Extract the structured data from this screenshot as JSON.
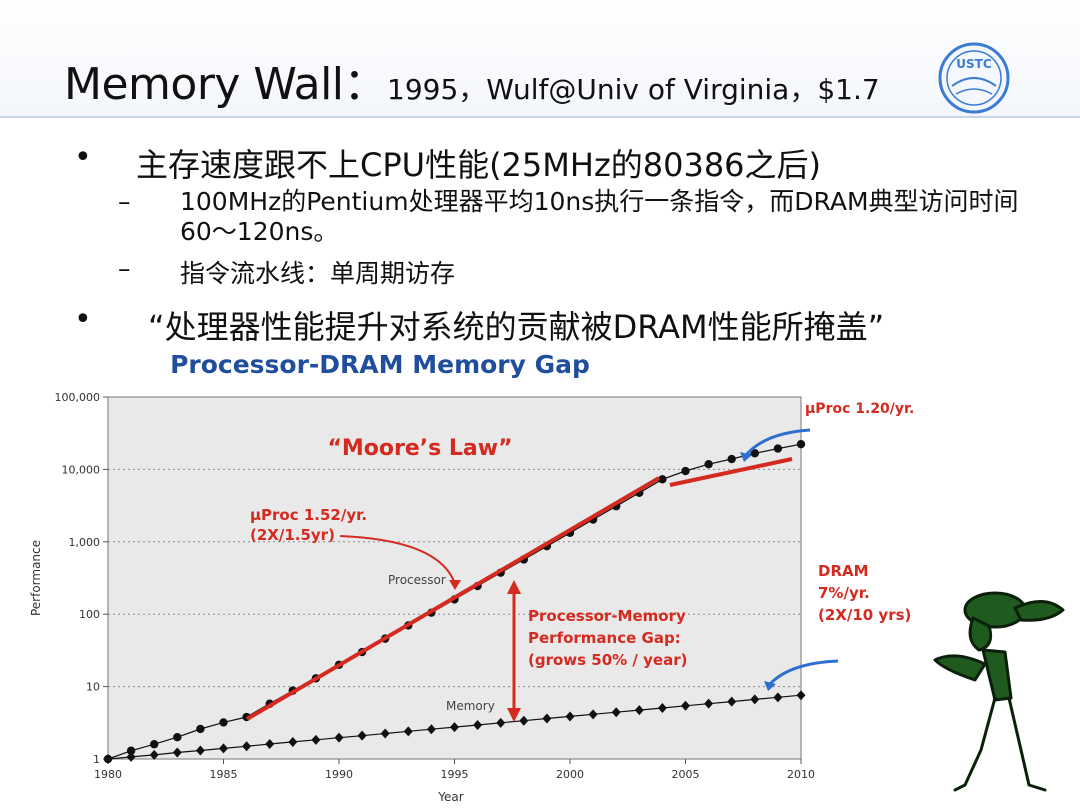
{
  "slide": {
    "title_main": "Memory Wall：",
    "title_sub": "1995，Wulf@Univ of Virginia，$1.7",
    "logo_text": "USTC",
    "bullets": [
      {
        "marker": "•",
        "text": "主存速度跟不上CPU性能(25MHz的80386之后)"
      },
      {
        "marker": "–",
        "text": "100MHz的Pentium处理器平均10ns执行一条指令，而DRAM典型访问时间60～120ns。"
      },
      {
        "marker": "–",
        "text": "指令流水线：单周期访存"
      },
      {
        "marker": "•",
        "text": "“处理器性能提升对系统的贡献被DRAM性能所掩盖”"
      }
    ]
  },
  "chart_data": {
    "type": "scatter",
    "title": "Processor-DRAM Memory Gap",
    "xlabel": "Year",
    "ylabel": "Performance",
    "yscale": "log",
    "xlim": [
      1980,
      2010
    ],
    "ylim": [
      1,
      100000
    ],
    "x_ticks": [
      "1980",
      "1985",
      "1990",
      "1995",
      "2000",
      "2005",
      "2010"
    ],
    "y_ticks": [
      "1",
      "10",
      "100",
      "1,000",
      "10,000",
      "100,000"
    ],
    "grid": true,
    "series": [
      {
        "name": "Processor",
        "color": "#111111",
        "x": [
          1980,
          1981,
          1982,
          1983,
          1984,
          1985,
          1986,
          1987,
          1988,
          1989,
          1990,
          1991,
          1992,
          1993,
          1994,
          1995,
          1996,
          1997,
          1998,
          1999,
          2000,
          2001,
          2002,
          2003,
          2004,
          2005,
          2006,
          2007,
          2008,
          2009,
          2010
        ],
        "y": [
          1,
          1.3,
          1.6,
          2,
          2.6,
          3.2,
          3.8,
          5.8,
          8.8,
          13,
          20,
          30,
          46,
          70,
          105,
          160,
          245,
          375,
          570,
          870,
          1330,
          2030,
          3100,
          4750,
          7300,
          9500,
          11800,
          13900,
          16700,
          19400,
          22300
        ]
      },
      {
        "name": "Memory",
        "color": "#111111",
        "x": [
          1980,
          1981,
          1982,
          1983,
          1984,
          1985,
          1986,
          1987,
          1988,
          1989,
          1990,
          1991,
          1992,
          1993,
          1994,
          1995,
          1996,
          1997,
          1998,
          1999,
          2000,
          2001,
          2002,
          2003,
          2004,
          2005,
          2006,
          2007,
          2008,
          2009,
          2010
        ],
        "y": [
          1,
          1.07,
          1.14,
          1.23,
          1.31,
          1.4,
          1.5,
          1.61,
          1.72,
          1.84,
          1.97,
          2.1,
          2.25,
          2.41,
          2.58,
          2.76,
          2.95,
          3.16,
          3.38,
          3.62,
          3.87,
          4.14,
          4.43,
          4.74,
          5.07,
          5.43,
          5.81,
          6.21,
          6.65,
          7.11,
          7.61
        ]
      }
    ],
    "annotations": {
      "moores_law": "“Moore’s Law”",
      "uproc_152_line1": "µProc 1.52/yr.",
      "uproc_152_line2": "(2X/1.5yr)",
      "uproc_120": "µProc 1.20/yr.",
      "dram_line1": "DRAM",
      "dram_line2": "7%/yr.",
      "dram_line3": "(2X/10 yrs)",
      "gap_line1": "Processor-Memory",
      "gap_line2": "Performance Gap:",
      "gap_line3": "(grows 50% / year)",
      "processor_label": "Processor",
      "memory_label": "Memory"
    },
    "colors": {
      "title": "#1f4e9c",
      "accent_red": "#d42a20",
      "annotation_blue": "#2d6fd1",
      "plot_bg": "#e9e9e9"
    }
  }
}
